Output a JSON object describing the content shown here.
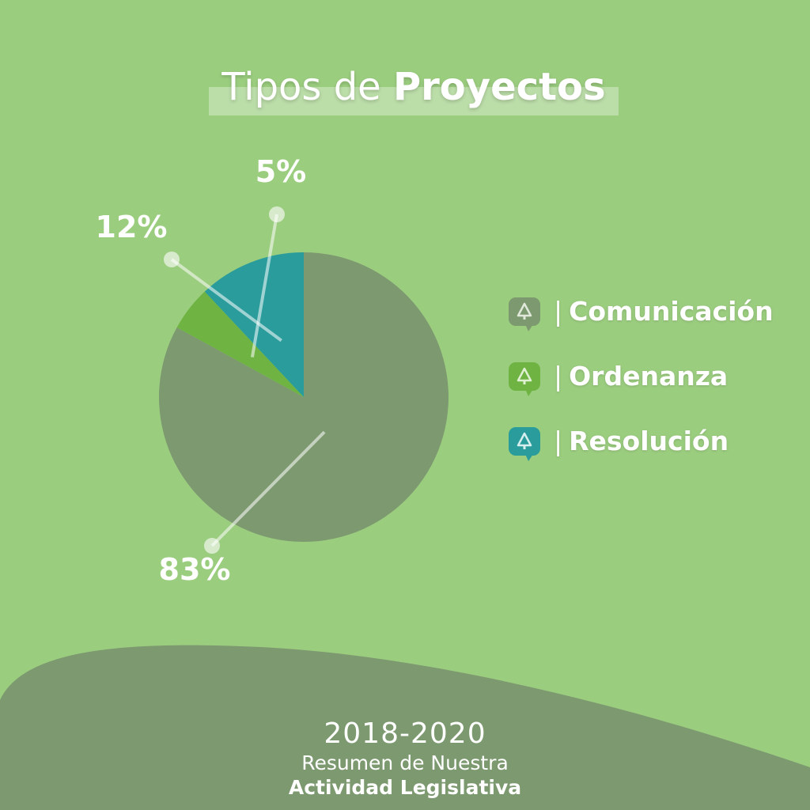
{
  "title": {
    "prefix": "Tipos de",
    "emphasis": "Proyectos"
  },
  "chart_data": {
    "type": "pie",
    "categories": [
      "Comunicación",
      "Ordenanza",
      "Resolución"
    ],
    "values": [
      83,
      5,
      12
    ],
    "value_labels": [
      "83%",
      "5%",
      "12%"
    ],
    "colors": [
      "#7d9970",
      "#6fb443",
      "#2a9c9b"
    ],
    "legend_position": "right",
    "title": "Tipos de Proyectos"
  },
  "legend": {
    "separator": "|",
    "items": [
      {
        "label": "Comunicación",
        "color": "#7d9970",
        "icon": "speech-bubble-tree-icon"
      },
      {
        "label": "Ordenanza",
        "color": "#6fb443",
        "icon": "speech-bubble-tree-icon"
      },
      {
        "label": "Resolución",
        "color": "#2a9c9b",
        "icon": "speech-bubble-tree-icon"
      }
    ]
  },
  "footer": {
    "years": "2018-2020",
    "subtitle": "Resumen de Nuestra",
    "main": "Actividad Legislativa"
  },
  "colors": {
    "background": "#9bcd7f",
    "footer_band": "#7d9970",
    "text": "#ffffff"
  }
}
